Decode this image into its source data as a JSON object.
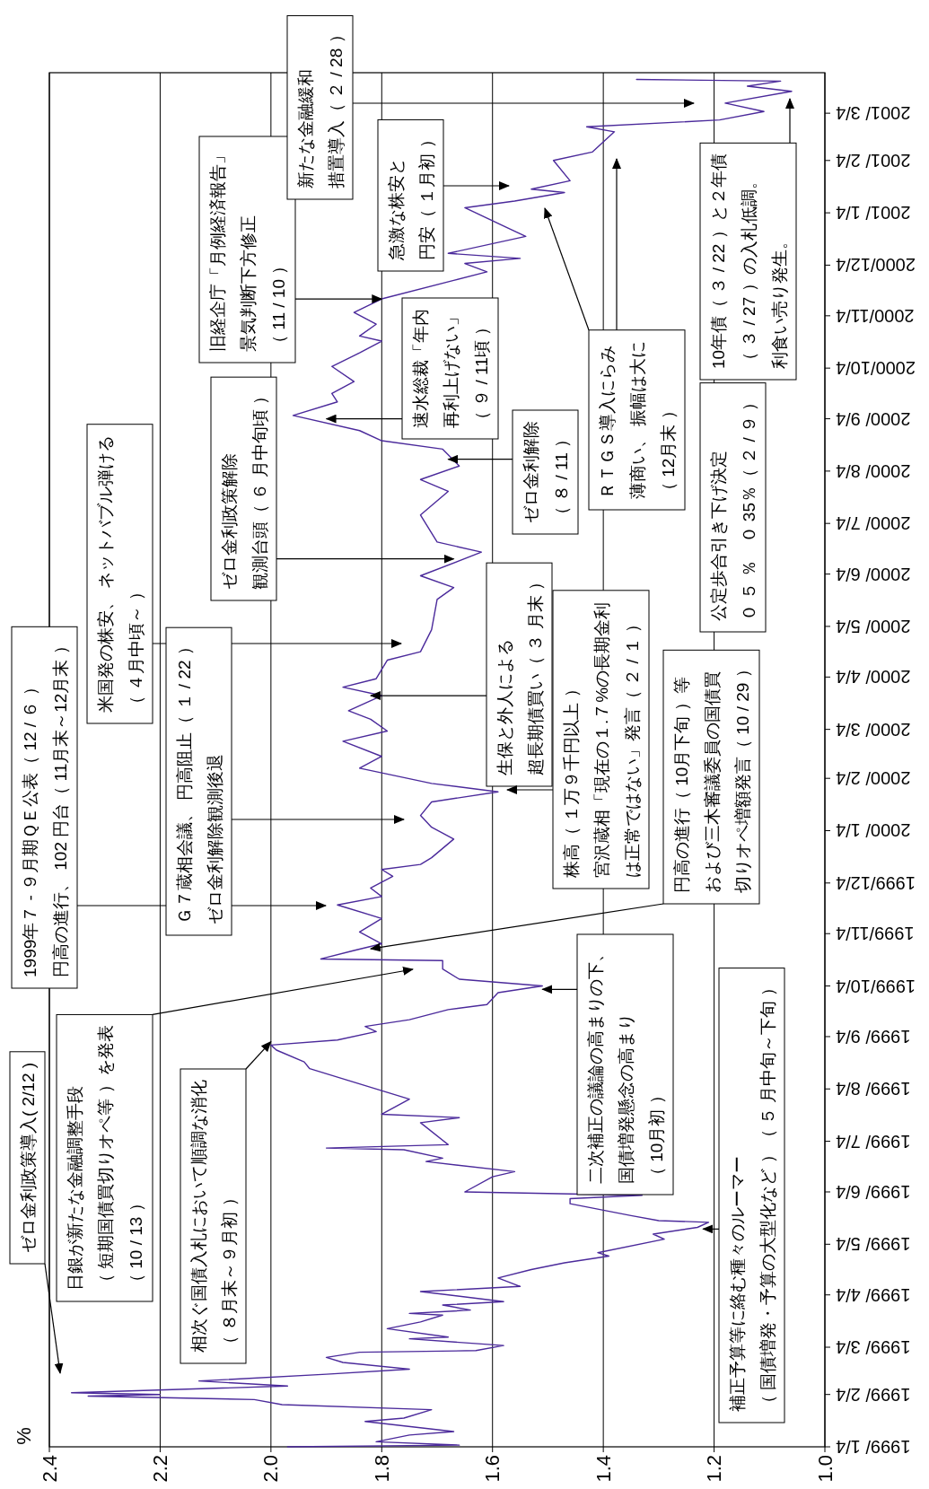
{
  "chart_data": {
    "type": "line",
    "orientation": "horizontal",
    "grid": "x",
    "ylim": [
      "1999-01-04",
      "2001-03-28"
    ],
    "xlim": [
      2.4,
      1.0
    ],
    "xticks": [
      {
        "value": 1.0,
        "label": "1.0"
      },
      {
        "value": 1.2,
        "label": "1.2"
      },
      {
        "value": 1.4,
        "label": "1.4"
      },
      {
        "value": 1.6,
        "label": "1.6"
      },
      {
        "value": 1.8,
        "label": "1.8"
      },
      {
        "value": 2.0,
        "label": "2.0"
      },
      {
        "value": 2.2,
        "label": "2.2"
      },
      {
        "value": 2.4,
        "label": "2.4"
      }
    ],
    "yticks": [
      {
        "value": "1999-01-04",
        "label": "1999/ 1/4"
      },
      {
        "value": "1999-02-04",
        "label": "1999/ 2/4"
      },
      {
        "value": "1999-03-04",
        "label": "1999/ 3/4"
      },
      {
        "value": "1999-04-04",
        "label": "1999/ 4/4"
      },
      {
        "value": "1999-05-04",
        "label": "1999/ 5/4"
      },
      {
        "value": "1999-06-04",
        "label": "1999/ 6/4"
      },
      {
        "value": "1999-07-04",
        "label": "1999/ 7/4"
      },
      {
        "value": "1999-08-04",
        "label": "1999/ 8/4"
      },
      {
        "value": "1999-09-04",
        "label": "1999/ 9/4"
      },
      {
        "value": "1999-10-04",
        "label": "1999/10/4"
      },
      {
        "value": "1999-11-04",
        "label": "1999/11/4"
      },
      {
        "value": "1999-12-04",
        "label": "1999/12/4"
      },
      {
        "value": "2000-01-04",
        "label": "2000/ 1/4"
      },
      {
        "value": "2000-02-04",
        "label": "2000/ 2/4"
      },
      {
        "value": "2000-03-04",
        "label": "2000/ 3/4"
      },
      {
        "value": "2000-04-04",
        "label": "2000/ 4/4"
      },
      {
        "value": "2000-05-04",
        "label": "2000/ 5/4"
      },
      {
        "value": "2000-06-04",
        "label": "2000/ 6/4"
      },
      {
        "value": "2000-07-04",
        "label": "2000/ 7/4"
      },
      {
        "value": "2000-08-04",
        "label": "2000/ 8/4"
      },
      {
        "value": "2000-09-04",
        "label": "2000/ 9/4"
      },
      {
        "value": "2000-10-04",
        "label": "2000/10/4"
      },
      {
        "value": "2000-11-04",
        "label": "2000/11/4"
      },
      {
        "value": "2000-12-04",
        "label": "2000/12/4"
      },
      {
        "value": "2001-01-04",
        "label": "2001/ 1/4"
      },
      {
        "value": "2001-02-04",
        "label": "2001/ 2/4"
      },
      {
        "value": "2001-03-04",
        "label": "2001/ 3/4"
      }
    ],
    "x": [
      "1999-01-04",
      "1999-01-05",
      "1999-01-07",
      "1999-01-11",
      "1999-01-13",
      "1999-01-19",
      "1999-01-21",
      "1999-01-26",
      "1999-01-29",
      "1999-02-01",
      "1999-02-03",
      "1999-02-04",
      "1999-02-05",
      "1999-02-09",
      "1999-02-12",
      "1999-02-16",
      "1999-02-19",
      "1999-02-23",
      "1999-02-26",
      "1999-03-01",
      "1999-03-02",
      "1999-03-05",
      "1999-03-09",
      "1999-03-10",
      "1999-03-15",
      "1999-03-19",
      "1999-03-23",
      "1999-03-24",
      "1999-03-26",
      "1999-03-29",
      "1999-03-31",
      "1999-04-06",
      "1999-04-09",
      "1999-04-14",
      "1999-04-19",
      "1999-04-23",
      "1999-04-27",
      "1999-04-29",
      "1999-05-07",
      "1999-05-10",
      "1999-05-14",
      "1999-05-17",
      "1999-05-18",
      "1999-05-21",
      "1999-05-28",
      "1999-05-31",
      "1999-06-02",
      "1999-06-04",
      "1999-06-13",
      "1999-06-16",
      "1999-06-22",
      "1999-06-24",
      "1999-06-29",
      "1999-06-30",
      "1999-07-02",
      "1999-07-15",
      "1999-07-18",
      "1999-07-20",
      "1999-07-29",
      "1999-08-09",
      "1999-08-16",
      "1999-08-20",
      "1999-08-27",
      "1999-08-30",
      "1999-09-02",
      "1999-09-07",
      "1999-09-10",
      "1999-09-14",
      "1999-09-20",
      "1999-09-23",
      "1999-09-30",
      "1999-10-04",
      "1999-10-08",
      "1999-10-14",
      "1999-10-19",
      "1999-10-20",
      "1999-10-25",
      "1999-10-29",
      "1999-11-05",
      "1999-11-13",
      "1999-11-21",
      "1999-11-26",
      "1999-12-01",
      "1999-12-08",
      "1999-12-12",
      "1999-12-15",
      "1999-12-19",
      "1999-12-30",
      "2000-01-06",
      "2000-01-13",
      "2000-01-21",
      "2000-01-27",
      "2000-02-01",
      "2000-02-10",
      "2000-02-17",
      "2000-02-26",
      "2000-03-03",
      "2000-03-10",
      "2000-03-15",
      "2000-03-24",
      "2000-03-29",
      "2000-04-03",
      "2000-04-14",
      "2000-04-19",
      "2000-05-02",
      "2000-05-20",
      "2000-05-27",
      "2000-06-03",
      "2000-06-17",
      "2000-06-23",
      "2000-07-09",
      "2000-07-23",
      "2000-07-30",
      "2000-08-07",
      "2000-08-17",
      "2000-08-22",
      "2000-08-28",
      "2000-09-06",
      "2000-09-14",
      "2000-09-19",
      "2000-09-26",
      "2000-10-05",
      "2000-10-13",
      "2000-10-20",
      "2000-10-23",
      "2000-10-30",
      "2000-11-06",
      "2000-11-14",
      "2000-11-25",
      "2000-11-30",
      "2000-12-05",
      "2000-12-08",
      "2000-12-11",
      "2000-12-21",
      "2001-01-07",
      "2001-01-11",
      "2001-01-16",
      "2001-01-18",
      "2001-01-23",
      "2001-02-04",
      "2001-02-09",
      "2001-02-21",
      "2001-02-24",
      "2001-02-28",
      "2001-03-05",
      "2001-03-10",
      "2001-03-17",
      "2001-03-20",
      "2001-03-23",
      "2001-03-24"
    ],
    "series": [
      {
        "color": "#4b2a9b",
        "values": [
          1.97,
          1.66,
          1.81,
          1.75,
          1.67,
          1.83,
          1.76,
          1.71,
          1.98,
          2.03,
          2.33,
          2.2,
          2.36,
          1.97,
          2.13,
          1.9,
          1.75,
          1.87,
          1.9,
          1.84,
          1.63,
          1.58,
          1.75,
          1.68,
          1.79,
          1.73,
          1.69,
          1.75,
          1.64,
          1.69,
          1.58,
          1.73,
          1.55,
          1.59,
          1.53,
          1.47,
          1.39,
          1.41,
          1.29,
          1.31,
          1.23,
          1.21,
          1.3,
          1.35,
          1.46,
          1.46,
          1.33,
          1.65,
          1.6,
          1.56,
          1.72,
          1.69,
          1.76,
          1.9,
          1.68,
          1.73,
          1.66,
          1.8,
          1.75,
          1.86,
          1.93,
          1.94,
          1.99,
          2.0,
          1.88,
          1.81,
          1.83,
          1.75,
          1.68,
          1.61,
          1.59,
          1.51,
          1.66,
          1.69,
          1.69,
          1.91,
          1.85,
          1.8,
          1.84,
          1.8,
          1.88,
          1.8,
          1.82,
          1.78,
          1.8,
          1.73,
          1.71,
          1.67,
          1.71,
          1.73,
          1.71,
          1.59,
          1.71,
          1.84,
          1.8,
          1.87,
          1.79,
          1.82,
          1.86,
          1.8,
          1.87,
          1.81,
          1.79,
          1.73,
          1.71,
          1.7,
          1.67,
          1.73,
          1.62,
          1.7,
          1.73,
          1.68,
          1.73,
          1.66,
          1.69,
          1.8,
          1.84,
          1.96,
          1.88,
          1.89,
          1.85,
          1.89,
          1.84,
          1.8,
          1.84,
          1.81,
          1.85,
          1.8,
          1.67,
          1.61,
          1.65,
          1.55,
          1.68,
          1.54,
          1.65,
          1.56,
          1.47,
          1.53,
          1.46,
          1.49,
          1.42,
          1.38,
          1.43,
          1.19,
          1.11,
          1.18,
          1.06,
          1.14,
          1.08,
          1.34
        ]
      }
    ],
    "annotations": [
      "ゼロ金利政策導入( 2/12 )",
      "日銀が新たな金融調整手段（ 短期国債買切りオペ等 ）を発表（ 10 / 13 ）",
      {
        "text": "相次ぐ国債入札において順調な消化（ ８月末～９月初 ）",
        "x": 2.0,
        "y": "1999-09-01"
      },
      "1999年７ - ９月期ＱＥ公表（ 12 / ６ ）円高の進行、 102 円台（ 11月末～12月末 ）",
      "米国発の株安、 ネットバブル弾ける（ ４月中頃～ ）",
      "Ｇ７蔵相会議、 円高阻止（ １ / 22 ）ゼロ金利解除観測後退",
      {
        "text": "ゼロ金利政策解除観測台頭（ ６ 月中旬頃 ）",
        "x": 1.67,
        "y": "2000-06-13"
      },
      {
        "text": "旧経企庁「月例経済報告」景気判断下方修正（ 11 / 10 ）",
        "x": 1.8,
        "y": "2000-11-14"
      },
      "新たな金融緩和措置導入（ ２ / 28 ）",
      "急激な株安と円安（ １月初 ）",
      {
        "text": "速水総裁「年内再利上げない」（ ９ / 11頃 ）",
        "x": 1.9,
        "y": "2000-09-04"
      },
      {
        "text": "ゼロ金利解除（ ８ / 11 ）",
        "x": 1.68,
        "y": "2000-08-11"
      },
      {
        "text": "生保と外人による超長期債買い（ ３ 月末 ）",
        "x": 1.82,
        "y": "2000-03-24"
      },
      "株高（ １万９千円以上 ）宮沢蔵相「現在の１.７%の長期金利は正常ではない」発言（ ２ / １ ）",
      {
        "text": "円高の進行（ 10月下旬 ）等および三木審議委員の国債買切りオペ増額発言（ 10 / 29 ）",
        "x": 1.82,
        "y": "1999-10-26"
      },
      {
        "text": "二次補正の議論の高まりの下、国債増発懸念の高まり（ 10月初 ）",
        "x": 1.51,
        "y": "1999-10-02"
      },
      {
        "text": "補正予算等に絡む種々のルーマー（ 国債増発・予算の大型化など ）（ ５ 月中旬～下旬 ）",
        "x": 1.22,
        "y": "1999-05-13"
      },
      "ＲＴＧＳ導入にらみ薄商い、 振幅は大に（ 12月末 ）",
      "公定歩合引き下げ決定０ ５ ％　０ 35％（ ２ / ９ ）",
      "10年債（ ３ / 22 ）と２年債（ ３ / 27 ）の入札低調。利食い売り発生。",
      "%"
    ]
  }
}
